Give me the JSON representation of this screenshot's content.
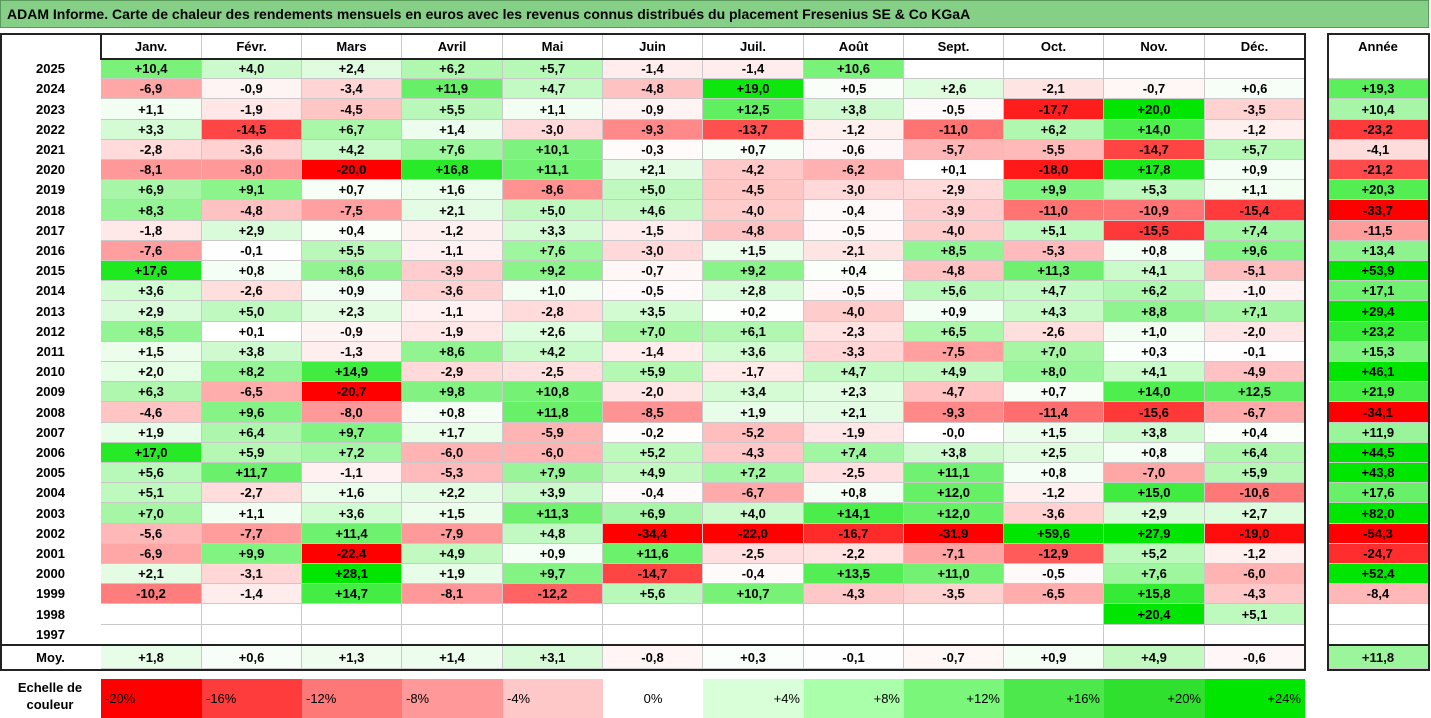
{
  "title": "ADAM Informe. Carte de chaleur des rendements mensuels en euros avec les revenus connus distribués du placement Fresenius SE & Co KGaA",
  "chart_data": {
    "type": "heatmap",
    "months": [
      "Janv.",
      "Févr.",
      "Mars",
      "Avril",
      "Mai",
      "Juin",
      "Juil.",
      "Août",
      "Sept.",
      "Oct.",
      "Nov.",
      "Déc."
    ],
    "year_header": "Année",
    "rows": [
      {
        "year": "2025",
        "m": [
          "+10,4",
          "+4,0",
          "+2,4",
          "+6,2",
          "+5,7",
          "-1,4",
          "-1,4",
          "+10,6",
          "",
          "",
          "",
          ""
        ],
        "y": ""
      },
      {
        "year": "2024",
        "m": [
          "-6,9",
          "-0,9",
          "-3,4",
          "+11,9",
          "+4,7",
          "-4,8",
          "+19,0",
          "+0,5",
          "+2,6",
          "-2,1",
          "-0,7",
          "+0,6"
        ],
        "y": "+19,3"
      },
      {
        "year": "2023",
        "m": [
          "+1,1",
          "-1,9",
          "-4,5",
          "+5,5",
          "+1,1",
          "-0,9",
          "+12,5",
          "+3,8",
          "-0,5",
          "-17,7",
          "+20,0",
          "-3,5"
        ],
        "y": "+10,4"
      },
      {
        "year": "2022",
        "m": [
          "+3,3",
          "-14,5",
          "+6,7",
          "+1,4",
          "-3,0",
          "-9,3",
          "-13,7",
          "-1,2",
          "-11,0",
          "+6,2",
          "+14,0",
          "-1,2"
        ],
        "y": "-23,2"
      },
      {
        "year": "2021",
        "m": [
          "-2,8",
          "-3,6",
          "+4,2",
          "+7,6",
          "+10,1",
          "-0,3",
          "+0,7",
          "-0,6",
          "-5,7",
          "-5,5",
          "-14,7",
          "+5,7"
        ],
        "y": "-4,1"
      },
      {
        "year": "2020",
        "m": [
          "-8,1",
          "-8,0",
          "-20,0",
          "+16,8",
          "+11,1",
          "+2,1",
          "-4,2",
          "-6,2",
          "+0,1",
          "-18,0",
          "+17,8",
          "+0,9"
        ],
        "y": "-21,2"
      },
      {
        "year": "2019",
        "m": [
          "+6,9",
          "+9,1",
          "+0,7",
          "+1,6",
          "-8,6",
          "+5,0",
          "-4,5",
          "-3,0",
          "-2,9",
          "+9,9",
          "+5,3",
          "+1,1"
        ],
        "y": "+20,3"
      },
      {
        "year": "2018",
        "m": [
          "+8,3",
          "-4,8",
          "-7,5",
          "+2,1",
          "+5,0",
          "+4,6",
          "-4,0",
          "-0,4",
          "-3,9",
          "-11,0",
          "-10,9",
          "-15,4"
        ],
        "y": "-33,7"
      },
      {
        "year": "2017",
        "m": [
          "-1,8",
          "+2,9",
          "+0,4",
          "-1,2",
          "+3,3",
          "-1,5",
          "-4,8",
          "-0,5",
          "-4,0",
          "+5,1",
          "-15,5",
          "+7,4"
        ],
        "y": "-11,5"
      },
      {
        "year": "2016",
        "m": [
          "-7,6",
          "-0,1",
          "+5,5",
          "-1,1",
          "+7,6",
          "-3,0",
          "+1,5",
          "-2,1",
          "+8,5",
          "-5,3",
          "+0,8",
          "+9,6"
        ],
        "y": "+13,4"
      },
      {
        "year": "2015",
        "m": [
          "+17,6",
          "+0,8",
          "+8,6",
          "-3,9",
          "+9,2",
          "-0,7",
          "+9,2",
          "+0,4",
          "-4,8",
          "+11,3",
          "+4,1",
          "-5,1"
        ],
        "y": "+53,9"
      },
      {
        "year": "2014",
        "m": [
          "+3,6",
          "-2,6",
          "+0,9",
          "-3,6",
          "+1,0",
          "-0,5",
          "+2,8",
          "-0,5",
          "+5,6",
          "+4,7",
          "+6,2",
          "-1,0"
        ],
        "y": "+17,1"
      },
      {
        "year": "2013",
        "m": [
          "+2,9",
          "+5,0",
          "+2,3",
          "-1,1",
          "-2,8",
          "+3,5",
          "+0,2",
          "-4,0",
          "+0,9",
          "+4,3",
          "+8,8",
          "+7,1"
        ],
        "y": "+29,4"
      },
      {
        "year": "2012",
        "m": [
          "+8,5",
          "+0,1",
          "-0,9",
          "-1,9",
          "+2,6",
          "+7,0",
          "+6,1",
          "-2,3",
          "+6,5",
          "-2,6",
          "+1,0",
          "-2,0"
        ],
        "y": "+23,2"
      },
      {
        "year": "2011",
        "m": [
          "+1,5",
          "+3,8",
          "-1,3",
          "+8,6",
          "+4,2",
          "-1,4",
          "+3,6",
          "-3,3",
          "-7,5",
          "+7,0",
          "+0,3",
          "-0,1"
        ],
        "y": "+15,3"
      },
      {
        "year": "2010",
        "m": [
          "+2,0",
          "+8,2",
          "+14,9",
          "-2,9",
          "-2,5",
          "+5,9",
          "-1,7",
          "+4,7",
          "+4,9",
          "+8,0",
          "+4,1",
          "-4,9"
        ],
        "y": "+46,1"
      },
      {
        "year": "2009",
        "m": [
          "+6,3",
          "-6,5",
          "-20,7",
          "+9,8",
          "+10,8",
          "-2,0",
          "+3,4",
          "+2,3",
          "-4,7",
          "+0,7",
          "+14,0",
          "+12,5"
        ],
        "y": "+21,9"
      },
      {
        "year": "2008",
        "m": [
          "-4,6",
          "+9,6",
          "-8,0",
          "+0,8",
          "+11,8",
          "-8,5",
          "+1,9",
          "+2,1",
          "-9,3",
          "-11,4",
          "-15,6",
          "-6,7"
        ],
        "y": "-34,1"
      },
      {
        "year": "2007",
        "m": [
          "+1,9",
          "+6,4",
          "+9,7",
          "+1,7",
          "-5,9",
          "-0,2",
          "-5,2",
          "-1,9",
          "-0,0",
          "+1,5",
          "+3,8",
          "+0,4"
        ],
        "y": "+11,9"
      },
      {
        "year": "2006",
        "m": [
          "+17,0",
          "+5,9",
          "+7,2",
          "-6,0",
          "-6,0",
          "+5,2",
          "-4,3",
          "+7,4",
          "+3,8",
          "+2,5",
          "+0,8",
          "+6,4"
        ],
        "y": "+44,5"
      },
      {
        "year": "2005",
        "m": [
          "+5,6",
          "+11,7",
          "-1,1",
          "-5,3",
          "+7,9",
          "+4,9",
          "+7,2",
          "-2,5",
          "+11,1",
          "+0,8",
          "-7,0",
          "+5,9"
        ],
        "y": "+43,8"
      },
      {
        "year": "2004",
        "m": [
          "+5,1",
          "-2,7",
          "+1,6",
          "+2,2",
          "+3,9",
          "-0,4",
          "-6,7",
          "+0,8",
          "+12,0",
          "-1,2",
          "+15,0",
          "-10,6"
        ],
        "y": "+17,6"
      },
      {
        "year": "2003",
        "m": [
          "+7,0",
          "+1,1",
          "+3,6",
          "+1,5",
          "+11,3",
          "+6,9",
          "+4,0",
          "+14,1",
          "+12,0",
          "-3,6",
          "+2,9",
          "+2,7"
        ],
        "y": "+82,0"
      },
      {
        "year": "2002",
        "m": [
          "-5,6",
          "-7,7",
          "+11,4",
          "-7,9",
          "+4,8",
          "-34,4",
          "-22,0",
          "-16,7",
          "-31,9",
          "+59,6",
          "+27,9",
          "-19,0"
        ],
        "y": "-54,3"
      },
      {
        "year": "2001",
        "m": [
          "-6,9",
          "+9,9",
          "-22,4",
          "+4,9",
          "+0,9",
          "+11,6",
          "-2,5",
          "-2,2",
          "-7,1",
          "-12,9",
          "+5,2",
          "-1,2"
        ],
        "y": "-24,7"
      },
      {
        "year": "2000",
        "m": [
          "+2,1",
          "-3,1",
          "+28,1",
          "+1,9",
          "+9,7",
          "-14,7",
          "-0,4",
          "+13,5",
          "+11,0",
          "-0,5",
          "+7,6",
          "-6,0"
        ],
        "y": "+52,4"
      },
      {
        "year": "1999",
        "m": [
          "-10,2",
          "-1,4",
          "+14,7",
          "-8,1",
          "-12,2",
          "+5,6",
          "+10,7",
          "-4,3",
          "-3,5",
          "-6,5",
          "+15,8",
          "-4,3"
        ],
        "y": "-8,4"
      },
      {
        "year": "1998",
        "m": [
          "",
          "",
          "",
          "",
          "",
          "",
          "",
          "",
          "",
          "",
          "+20,4",
          "+5,1"
        ],
        "y": ""
      },
      {
        "year": "1997",
        "m": [
          "",
          "",
          "",
          "",
          "",
          "",
          "",
          "",
          "",
          "",
          "",
          ""
        ],
        "y": ""
      }
    ],
    "average": {
      "label": "Moy.",
      "m": [
        "+1,8",
        "+0,6",
        "+1,3",
        "+1,4",
        "+3,1",
        "-0,8",
        "+0,3",
        "-0,1",
        "-0,7",
        "+0,9",
        "+4,9",
        "-0,6"
      ],
      "y": "+11,8"
    },
    "color_scale": {
      "label_line1": "Echelle de",
      "label_line2": "couleur",
      "steps": [
        "-20%",
        "-16%",
        "-12%",
        "-8%",
        "-4%",
        "0%",
        "+4%",
        "+8%",
        "+12%",
        "+16%",
        "+20%",
        "+24%"
      ],
      "colors": [
        "#ff0000",
        "#ff3c3c",
        "#ff7878",
        "#ff9999",
        "#ffc8c8",
        "#ffffff",
        "#d9ffd9",
        "#aaffaa",
        "#7af77a",
        "#4ce84c",
        "#2fe02f",
        "#00e600"
      ]
    }
  }
}
